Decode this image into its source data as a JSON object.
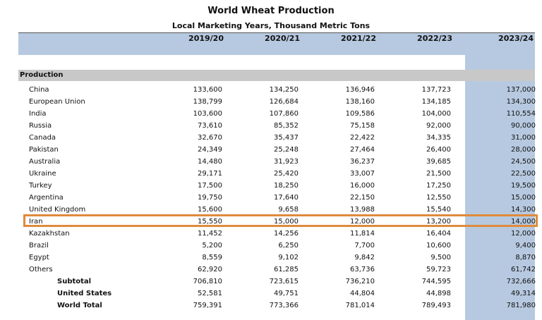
{
  "title": "World Wheat Production",
  "subtitle": "Local Marketing Years, Thousand Metric Tons",
  "columns": [
    "2019/20",
    "2020/21",
    "2021/22",
    "2022/23",
    "2023/24"
  ],
  "section_label": "Production",
  "rows": [
    {
      "name": "China",
      "values": [
        "133,600",
        "134,250",
        "136,946",
        "137,723",
        "137,000"
      ]
    },
    {
      "name": "European Union",
      "values": [
        "138,799",
        "126,684",
        "138,160",
        "134,185",
        "134,300"
      ]
    },
    {
      "name": "India",
      "values": [
        "103,600",
        "107,860",
        "109,586",
        "104,000",
        "110,554"
      ]
    },
    {
      "name": "Russia",
      "values": [
        "73,610",
        "85,352",
        "75,158",
        "92,000",
        "90,000"
      ]
    },
    {
      "name": "Canada",
      "values": [
        "32,670",
        "35,437",
        "22,422",
        "34,335",
        "31,000"
      ]
    },
    {
      "name": "Pakistan",
      "values": [
        "24,349",
        "25,248",
        "27,464",
        "26,400",
        "28,000"
      ]
    },
    {
      "name": "Australia",
      "values": [
        "14,480",
        "31,923",
        "36,237",
        "39,685",
        "24,500"
      ]
    },
    {
      "name": "Ukraine",
      "values": [
        "29,171",
        "25,420",
        "33,007",
        "21,500",
        "22,500"
      ]
    },
    {
      "name": "Turkey",
      "values": [
        "17,500",
        "18,250",
        "16,000",
        "17,250",
        "19,500"
      ]
    },
    {
      "name": "Argentina",
      "values": [
        "19,750",
        "17,640",
        "22,150",
        "12,550",
        "15,000"
      ]
    },
    {
      "name": "United Kingdom",
      "values": [
        "15,600",
        "9,658",
        "13,988",
        "15,540",
        "14,300"
      ]
    },
    {
      "name": "Iran",
      "values": [
        "15,550",
        "15,000",
        "12,000",
        "13,200",
        "14,000"
      ]
    },
    {
      "name": "Kazakhstan",
      "values": [
        "11,452",
        "14,256",
        "11,814",
        "16,404",
        "12,000"
      ]
    },
    {
      "name": "Brazil",
      "values": [
        "5,200",
        "6,250",
        "7,700",
        "10,600",
        "9,400"
      ]
    },
    {
      "name": "Egypt",
      "values": [
        "8,559",
        "9,102",
        "9,842",
        "9,500",
        "8,870"
      ]
    },
    {
      "name": "Others",
      "values": [
        "62,920",
        "61,285",
        "63,736",
        "59,723",
        "61,742"
      ]
    }
  ],
  "totals": [
    {
      "name": "Subtotal",
      "values": [
        "706,810",
        "723,615",
        "736,210",
        "744,595",
        "732,666"
      ]
    },
    {
      "name": "United States",
      "values": [
        "52,581",
        "49,751",
        "44,804",
        "44,898",
        "49,314"
      ]
    },
    {
      "name": "World Total",
      "values": [
        "759,391",
        "773,366",
        "781,014",
        "789,493",
        "781,980"
      ]
    }
  ],
  "highlight_color": "#e08a3c",
  "header_color": "#b7c9e0"
}
